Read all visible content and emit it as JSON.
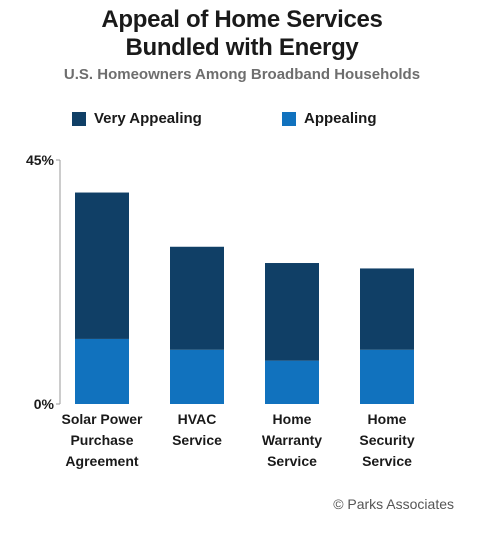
{
  "chart_data": {
    "type": "bar",
    "stacked": true,
    "title": "Appeal of Home Services Bundled with Energy",
    "title_lines": [
      "Appeal of Home Services",
      "Bundled with Energy"
    ],
    "subtitle": "U.S. Homeowners Among Broadband Households",
    "categories": [
      [
        "Solar Power",
        "Purchase",
        "Agreement"
      ],
      [
        "HVAC",
        "Service"
      ],
      [
        "Home",
        "Warranty",
        "Service"
      ],
      [
        "Home",
        "Security",
        "Service"
      ]
    ],
    "series": [
      {
        "name": "Appealing",
        "values": [
          12,
          10,
          8,
          10
        ]
      },
      {
        "name": "Very Appealing",
        "values": [
          27,
          19,
          18,
          15
        ]
      }
    ],
    "ylim": [
      0,
      45
    ],
    "yticks": [
      "0%",
      "45%"
    ],
    "grid": false,
    "legend": "top",
    "colors": {
      "Very Appealing": "#103f66",
      "Appealing": "#1172be"
    },
    "credit": "© Parks Associates"
  }
}
